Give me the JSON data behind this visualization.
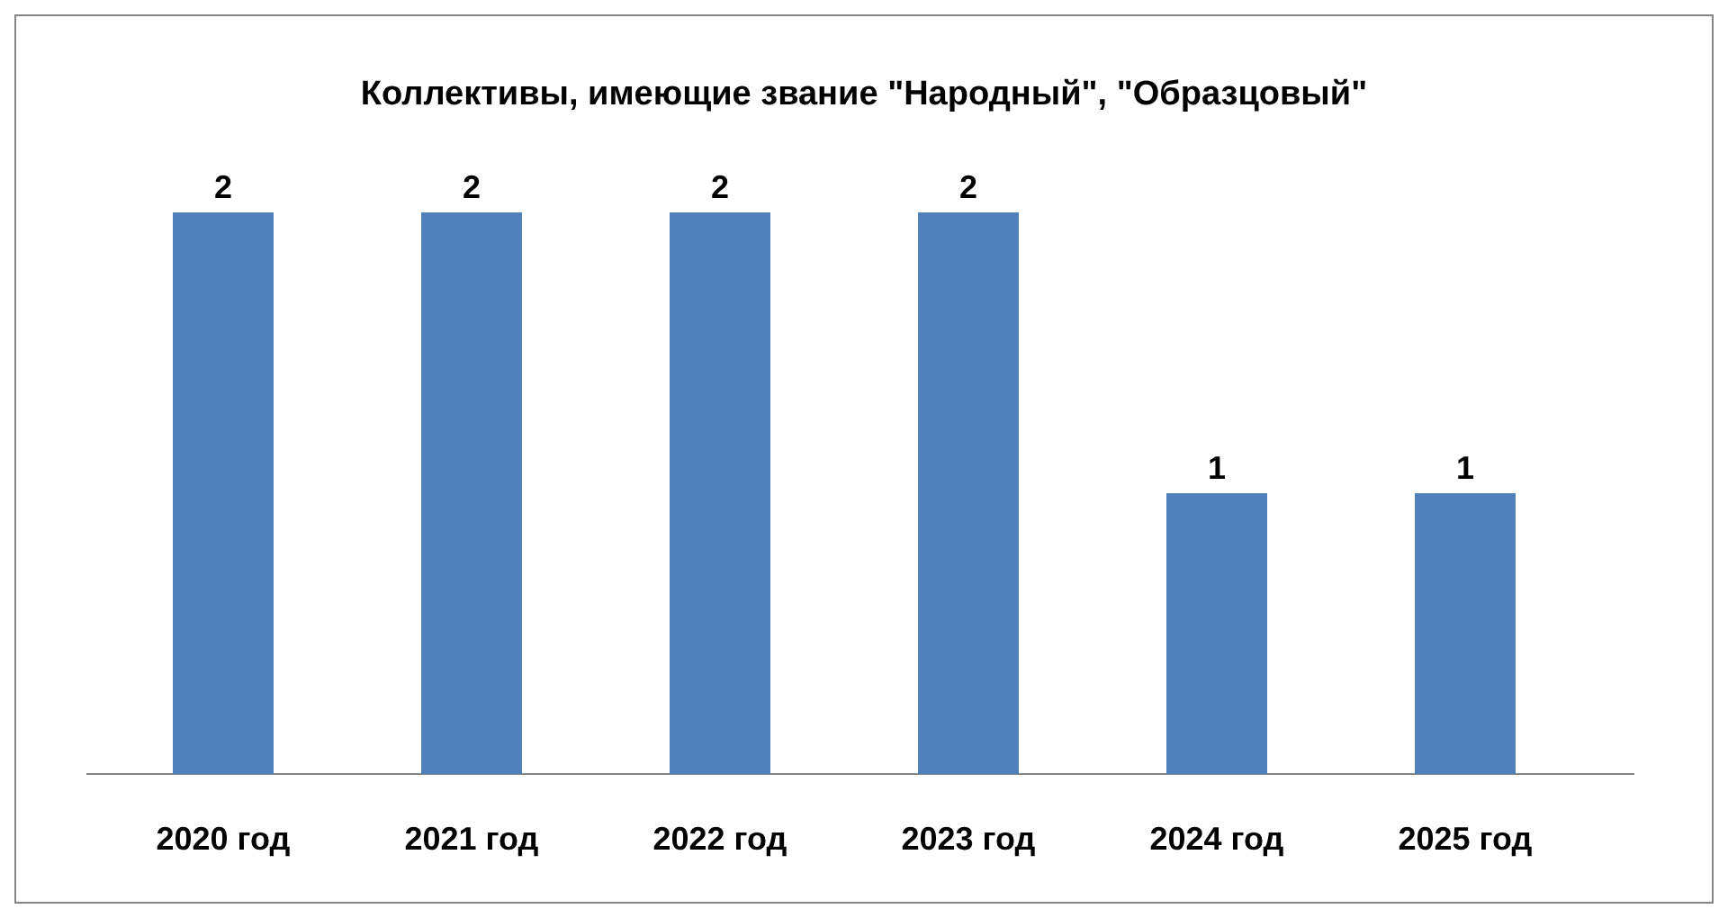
{
  "chart_data": {
    "type": "bar",
    "title": "Коллективы, имеющие звание \"Народный\", \"Образцовый\"",
    "categories": [
      "2020 год",
      "2021 год",
      "2022 год",
      "2023 год",
      "2024 год",
      "2025 год"
    ],
    "values": [
      2,
      2,
      2,
      2,
      1,
      1
    ],
    "color": "#4f81bd",
    "data_labels": true
  }
}
